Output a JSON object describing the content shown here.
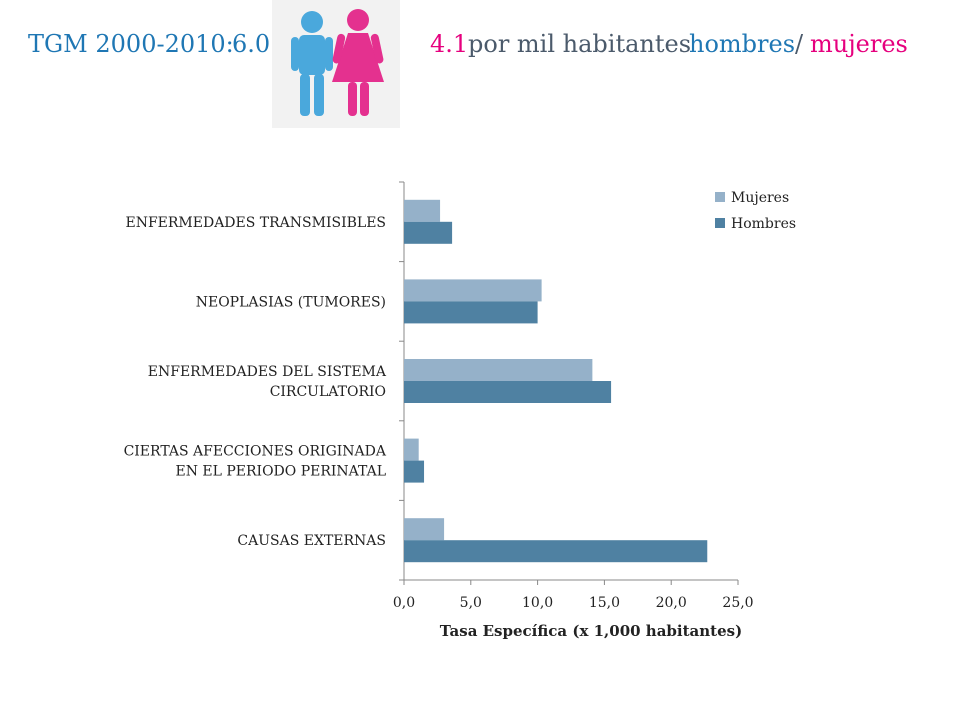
{
  "header": {
    "prefix": "TGM 2000-2010:",
    "value_hombres": "6.0",
    "value_mujeres": "4.1",
    "suffix_text": "por mil habitantes",
    "hombres_label": "hombres",
    "separator": "/",
    "mujeres_label": "mujeres"
  },
  "logo": {
    "icon": "men-women-figures-icon"
  },
  "colors": {
    "mujeres": "#95b1c9",
    "hombres": "#4f81a2",
    "title_blue": "#1f77b4",
    "title_pink": "#e6007e",
    "title_gray": "#4b5a6b"
  },
  "chart_data": {
    "type": "bar",
    "orientation": "horizontal",
    "categories": [
      [
        "ENFERMEDADES TRANSMISIBLES"
      ],
      [
        "NEOPLASIAS (TUMORES)"
      ],
      [
        "ENFERMEDADES DEL SISTEMA",
        "CIRCULATORIO"
      ],
      [
        "CIERTAS AFECCIONES ORIGINADA",
        "EN EL PERIODO  PERINATAL"
      ],
      [
        "CAUSAS EXTERNAS"
      ]
    ],
    "series": [
      {
        "name": "Mujeres",
        "values": [
          2.7,
          10.3,
          14.1,
          1.1,
          3.0
        ]
      },
      {
        "name": "Hombres",
        "values": [
          3.6,
          10.0,
          15.5,
          1.5,
          22.7
        ]
      }
    ],
    "xlim": [
      0,
      25
    ],
    "xticks": [
      "0,0",
      "5,0",
      "10,0",
      "15,0",
      "20,0",
      "25,0"
    ],
    "xlabel": "Tasa Específica    (x 1,000 habitantes)",
    "ylabel": "",
    "legend": [
      "Mujeres",
      "Hombres"
    ],
    "legend_position": "top-right",
    "grid": false
  }
}
